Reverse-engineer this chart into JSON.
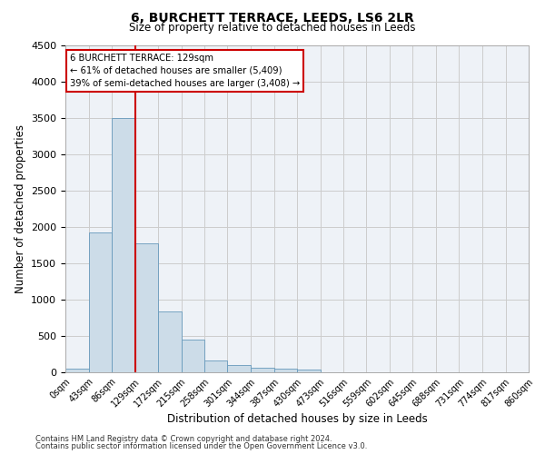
{
  "title": "6, BURCHETT TERRACE, LEEDS, LS6 2LR",
  "subtitle": "Size of property relative to detached houses in Leeds",
  "xlabel": "Distribution of detached houses by size in Leeds",
  "ylabel": "Number of detached properties",
  "bar_labels": [
    "0sqm",
    "43sqm",
    "86sqm",
    "129sqm",
    "172sqm",
    "215sqm",
    "258sqm",
    "301sqm",
    "344sqm",
    "387sqm",
    "430sqm",
    "473sqm",
    "516sqm",
    "559sqm",
    "602sqm",
    "645sqm",
    "688sqm",
    "731sqm",
    "774sqm",
    "817sqm",
    "860sqm"
  ],
  "bar_values": [
    50,
    1920,
    3500,
    1780,
    840,
    455,
    160,
    100,
    65,
    55,
    40,
    0,
    0,
    0,
    0,
    0,
    0,
    0,
    0,
    0,
    0
  ],
  "bin_edges": [
    0,
    43,
    86,
    129,
    172,
    215,
    258,
    301,
    344,
    387,
    430,
    473,
    516,
    559,
    602,
    645,
    688,
    731,
    774,
    817,
    860
  ],
  "bar_color": "#ccdce8",
  "bar_edge_color": "#6699bb",
  "vline_x": 129,
  "vline_color": "#cc0000",
  "ylim": [
    0,
    4500
  ],
  "annotation_line1": "6 BURCHETT TERRACE: 129sqm",
  "annotation_line2": "← 61% of detached houses are smaller (5,409)",
  "annotation_line3": "39% of semi-detached houses are larger (3,408) →",
  "annotation_box_color": "#cc0000",
  "footnote1": "Contains HM Land Registry data © Crown copyright and database right 2024.",
  "footnote2": "Contains public sector information licensed under the Open Government Licence v3.0.",
  "grid_color": "#cccccc",
  "bg_color": "#eef2f7"
}
